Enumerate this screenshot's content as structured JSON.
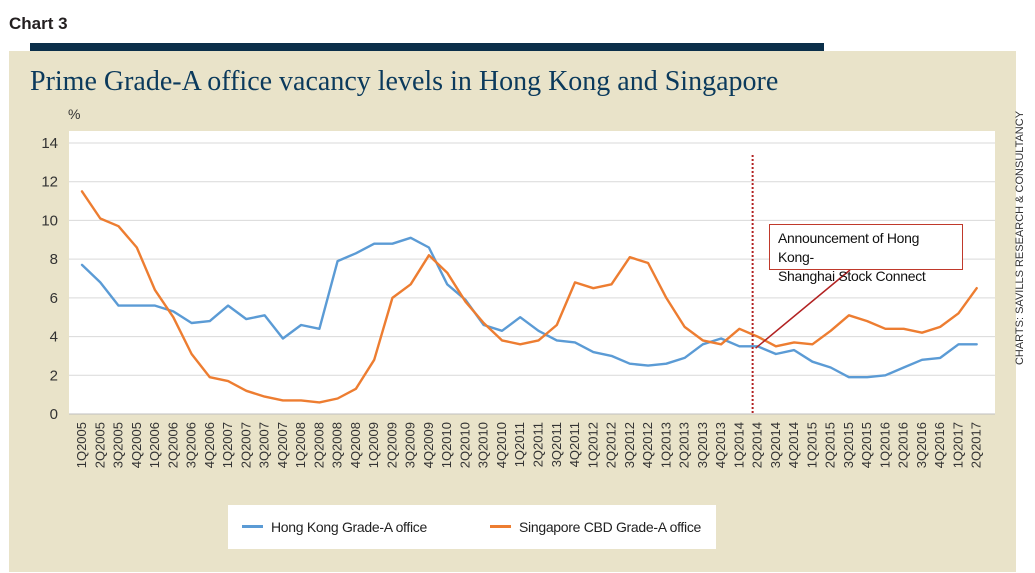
{
  "header": {
    "chart_label": "Chart 3",
    "title": "Prime Grade-A office vacancy levels in Hong Kong and Singapore",
    "unit": "%",
    "source": "CHARTS: SAVILLS RESEARCH & CONSULTANCY"
  },
  "colors": {
    "panel_background": "#e9e3c9",
    "top_rule": "#0b2f4a",
    "title": "#0b3a5c",
    "hong_kong": "#5b9bd5",
    "singapore": "#ed7d31",
    "annotation": "#c0392b"
  },
  "annotation": {
    "line1": "Announcement of Hong Kong-",
    "line2": "Shanghai Stock Connect",
    "at_quarter": "2Q2014"
  },
  "chart_data": {
    "type": "line",
    "title": "Prime Grade-A office vacancy levels in Hong Kong and Singapore",
    "ylabel": "%",
    "ylim": [
      0,
      14
    ],
    "yticks": [
      0,
      2,
      4,
      6,
      8,
      10,
      12,
      14
    ],
    "grid": true,
    "legend_position": "bottom",
    "x_tick_labels": [
      "1Q2005",
      "2Q2005",
      "3Q2005",
      "4Q2005",
      "1Q2006",
      "2Q2006",
      "3Q2006",
      "4Q2006",
      "1Q2007",
      "2Q2007",
      "3Q2007",
      "4Q2007",
      "1Q2008",
      "2Q2008",
      "3Q2008",
      "4Q2008",
      "1Q2009",
      "2Q2009",
      "3Q2009",
      "4Q2009",
      "1Q2010",
      "2Q2010",
      "3Q2010",
      "4Q2010",
      "1Q2011",
      "2Q2011",
      "3Q2011",
      "4Q2011",
      "1Q2012",
      "2Q2012",
      "3Q2012",
      "4Q2012",
      "1Q2013",
      "2Q2013",
      "3Q2013",
      "4Q2013",
      "1Q2014",
      "2Q2014",
      "3Q2014",
      "4Q2014",
      "1Q2015",
      "2Q2015",
      "3Q2015",
      "4Q2015",
      "1Q2016",
      "2Q2016",
      "3Q2016",
      "4Q2016",
      "1Q2017",
      "2Q2017"
    ],
    "series": [
      {
        "name": "Hong Kong Grade-A office",
        "values": [
          7.7,
          6.8,
          5.6,
          5.6,
          5.6,
          5.3,
          4.7,
          4.8,
          5.6,
          4.9,
          5.1,
          3.9,
          4.6,
          4.4,
          7.9,
          8.3,
          8.8,
          8.8,
          9.1,
          8.6,
          6.7,
          5.9,
          4.6,
          4.3,
          5.0,
          4.3,
          3.8,
          3.7,
          3.2,
          3.0,
          2.6,
          2.5,
          2.6,
          2.9,
          3.6,
          3.9,
          3.5,
          3.5,
          3.1,
          3.3,
          2.7,
          2.4,
          1.9,
          1.9,
          2.0,
          2.4,
          2.8,
          2.9,
          3.6,
          3.6
        ]
      },
      {
        "name": "Singapore CBD Grade-A office",
        "values": [
          11.5,
          10.1,
          9.7,
          8.6,
          6.4,
          5.0,
          3.1,
          1.9,
          1.7,
          1.2,
          0.9,
          0.7,
          0.7,
          0.6,
          0.8,
          1.3,
          2.8,
          6.0,
          6.7,
          8.2,
          7.3,
          5.8,
          4.7,
          3.8,
          3.6,
          3.8,
          4.6,
          6.8,
          6.5,
          6.7,
          8.1,
          7.8,
          6.0,
          4.5,
          3.8,
          3.6,
          4.4,
          4.0,
          3.5,
          3.7,
          3.6,
          4.3,
          5.1,
          4.8,
          4.4,
          4.4,
          4.2,
          4.5,
          5.2,
          6.5
        ]
      }
    ]
  }
}
